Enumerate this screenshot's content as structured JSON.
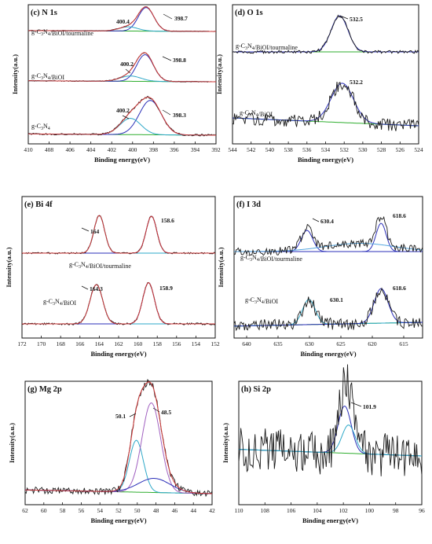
{
  "chart_data": [
    {
      "type": "line",
      "title": "(c) N 1s",
      "xlabel": "Binding energy(eV)",
      "ylabel": "Intensity(a.u.)",
      "xlim": [
        410,
        392
      ],
      "x_ticks": [
        410,
        408,
        406,
        404,
        402,
        400,
        398,
        396,
        394,
        392
      ],
      "series": [
        {
          "name": "g-C3N4/BiOI/tourmaline",
          "label": "g-C3N4/BiOI/tourmaline",
          "peaks": [
            398.7,
            400.4
          ],
          "peak_labels": [
            "398.7",
            "400.4"
          ]
        },
        {
          "name": "g-C3N4/BiOI",
          "label": "g-C3N4/BiOI",
          "peaks": [
            398.8,
            400.2
          ],
          "peak_labels": [
            "398.8",
            "400.2"
          ]
        },
        {
          "name": "g-C3N4",
          "label": "g-C3N4",
          "peaks": [
            398.3,
            400.2
          ],
          "peak_labels": [
            "398.3",
            "400.2"
          ]
        }
      ]
    },
    {
      "type": "line",
      "title": "(d) O 1s",
      "xlabel": "Binding energy(eV)",
      "ylabel": "Intensity(a.u.)",
      "xlim": [
        544,
        524
      ],
      "x_ticks": [
        544,
        542,
        540,
        538,
        536,
        534,
        532,
        530,
        528,
        526,
        524
      ],
      "series": [
        {
          "name": "g-C3N4/BiOI/tourmaline",
          "label": "g-C3N4/BiOI/tourmaline",
          "peaks": [
            532.5
          ],
          "peak_labels": [
            "532.5"
          ]
        },
        {
          "name": "g-C3N4/BiOI",
          "label": "g-C3N4/BiOI",
          "peaks": [
            532.2
          ],
          "peak_labels": [
            "532.2"
          ]
        }
      ]
    },
    {
      "type": "line",
      "title": "(e) Bi 4f",
      "xlabel": "Binding energy(eV)",
      "ylabel": "Intensity(a.u.)",
      "xlim": [
        172,
        152
      ],
      "x_ticks": [
        172,
        170,
        168,
        166,
        164,
        162,
        160,
        158,
        156,
        154,
        152
      ],
      "series": [
        {
          "name": "g-C3N4/BiOI/tourmaline",
          "label": "g-C3N4/BiOI/tourmaline",
          "peaks": [
            164,
            158.6
          ],
          "peak_labels": [
            "164",
            "158.6"
          ]
        },
        {
          "name": "g-C3N4/BiOI",
          "label": "g-C3N4/BiOI",
          "peaks": [
            164.3,
            158.9
          ],
          "peak_labels": [
            "164.3",
            "158.9"
          ]
        }
      ]
    },
    {
      "type": "line",
      "title": "(f) I 3d",
      "xlabel": "Binding energy(eV)",
      "ylabel": "Intensity(a.u.)",
      "xlim": [
        642,
        612
      ],
      "x_ticks": [
        640,
        635,
        630,
        625,
        620,
        615
      ],
      "series": [
        {
          "name": "g-C3N4/BiOI/tourmaline",
          "label": "g-C3N4/BiOI/tourmaline",
          "peaks": [
            630.4,
            618.6
          ],
          "peak_labels": [
            "630.4",
            "618.6"
          ]
        },
        {
          "name": "g-C3N4/BiOI",
          "label": "g-C3N4/BiOI",
          "peaks": [
            630.1,
            618.6
          ],
          "peak_labels": [
            "630.1",
            "618.6"
          ]
        }
      ]
    },
    {
      "type": "line",
      "title": "(g) Mg 2p",
      "xlabel": "Binding energy(eV)",
      "ylabel": "Intensity(a.u.)",
      "xlim": [
        62,
        42
      ],
      "x_ticks": [
        62,
        60,
        58,
        56,
        54,
        52,
        50,
        48,
        46,
        44,
        42
      ],
      "series": [
        {
          "name": "",
          "label": "",
          "peaks": [
            50.1,
            48.5
          ],
          "peak_labels": [
            "50.1",
            "48.5"
          ]
        }
      ]
    },
    {
      "type": "line",
      "title": "(h) Si 2p",
      "xlabel": "Binding energy(eV)",
      "ylabel": "Intensity(a.u.)",
      "xlim": [
        110,
        96
      ],
      "x_ticks": [
        110,
        108,
        106,
        104,
        102,
        100,
        98,
        96
      ],
      "series": [
        {
          "name": "",
          "label": "",
          "peaks": [
            101.9
          ],
          "peak_labels": [
            "101.9"
          ]
        }
      ]
    }
  ],
  "colors": {
    "raw": "#1a1a1a",
    "envelope": "#d13a3a",
    "fit_main": "#2b2fb8",
    "fit_secondary": "#2ea8c8",
    "background": "#2fae2f",
    "baseline_alt": "#54a6e0",
    "fit_extra": "#a060c0"
  }
}
